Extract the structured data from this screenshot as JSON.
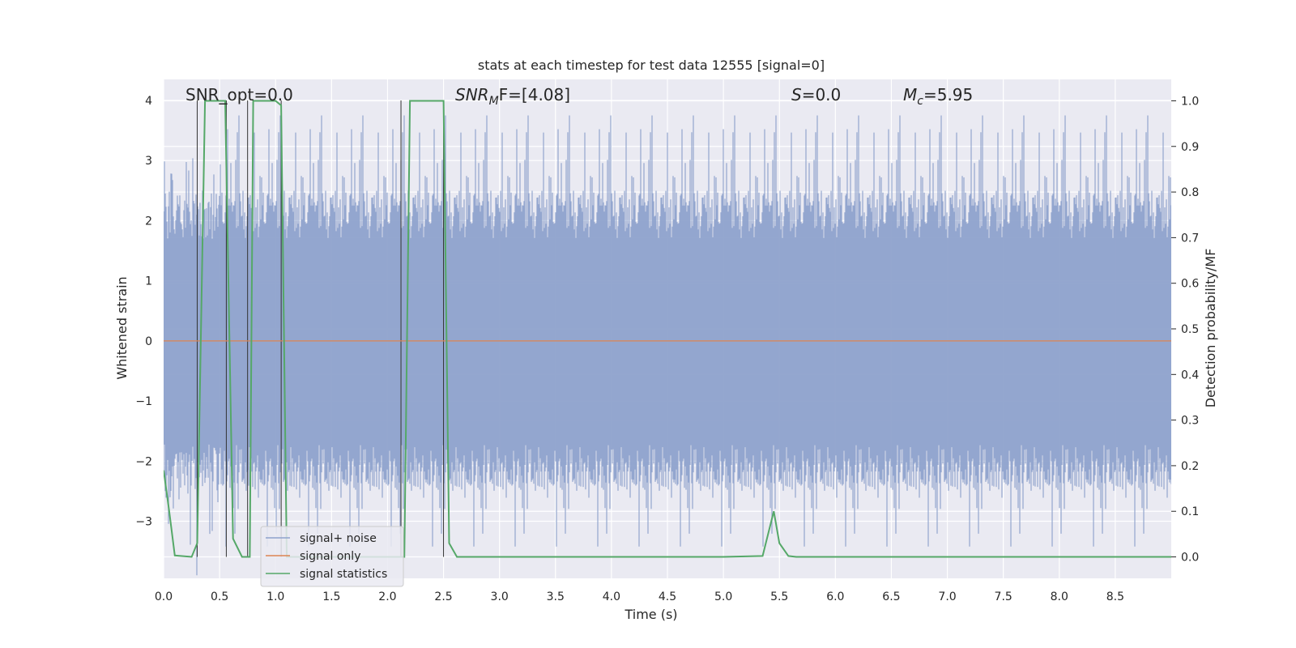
{
  "chart_data": {
    "type": "line",
    "title": "stats at each timestep for test data 12555 [signal=0]",
    "xlabel": "Time (s)",
    "ylabel_left": "Whitened strain",
    "ylabel_right": "Detection probability/MF",
    "xlim": [
      0.0,
      9.0
    ],
    "ylim_left": [
      -3.95,
      4.35
    ],
    "ylim_right": [
      -0.047,
      1.047
    ],
    "x_ticks": [
      "0.0",
      "0.5",
      "1.0",
      "1.5",
      "2.0",
      "2.5",
      "3.0",
      "3.5",
      "4.0",
      "4.5",
      "5.0",
      "5.5",
      "6.0",
      "6.5",
      "7.0",
      "7.5",
      "8.0",
      "8.5"
    ],
    "y_ticks_left": [
      "−3",
      "−2",
      "−1",
      "0",
      "1",
      "2",
      "3",
      "4"
    ],
    "y_ticks_right": [
      "0.0",
      "0.1",
      "0.2",
      "0.3",
      "0.4",
      "0.5",
      "0.6",
      "0.7",
      "0.8",
      "0.9",
      "1.0"
    ],
    "grid": true,
    "legend_position": "bottom-left",
    "annotations": {
      "snr_opt": "SNR_opt=0.0",
      "snr_mf_main": "SNR",
      "snr_mf_sub": "M",
      "snr_mf_rest": "F=[4.08]",
      "s_main": "S",
      "s_rest": "=0.0",
      "mc_main": "M",
      "mc_sub": "c",
      "mc_rest": "=5.95"
    },
    "series": [
      {
        "name": "signal+ noise",
        "color": "#8ea2cc",
        "description": "whitened strain noise, amplitude ~±1.6 to ±4",
        "noise_envelope": {
          "typical": 1.7,
          "peak": 4.0
        }
      },
      {
        "name": "signal only",
        "color": "#dd8452",
        "x": [
          0.0,
          9.0
        ],
        "y": [
          0.0,
          0.0
        ]
      },
      {
        "name": "signal statistics",
        "color": "#55a868",
        "axis": "right",
        "x": [
          0.0,
          0.05,
          0.1,
          0.25,
          0.3,
          0.37,
          0.43,
          0.55,
          0.62,
          0.7,
          0.73,
          0.77,
          0.8,
          0.88,
          1.0,
          1.05,
          1.1,
          1.15,
          1.5,
          2.0,
          2.1,
          2.15,
          2.2,
          2.5,
          2.55,
          2.62,
          3.0,
          4.0,
          5.0,
          5.35,
          5.45,
          5.5,
          5.58,
          5.65,
          6.0,
          7.0,
          8.0,
          9.0
        ],
        "y": [
          0.19,
          0.1,
          0.003,
          0.0,
          0.03,
          1.0,
          1.0,
          1.0,
          0.04,
          0.0,
          0.0,
          0.0,
          1.0,
          1.0,
          1.0,
          0.99,
          0.0,
          0.0,
          0.0,
          0.0,
          0.0,
          0.0,
          1.0,
          1.0,
          0.03,
          0.0,
          0.0,
          0.0,
          0.0,
          0.002,
          0.1,
          0.03,
          0.002,
          0.0,
          0.0,
          0.0,
          0.0,
          0.0
        ]
      }
    ],
    "vertical_markers_x": [
      0.3,
      0.56,
      0.75,
      1.05,
      2.12,
      2.5
    ]
  }
}
